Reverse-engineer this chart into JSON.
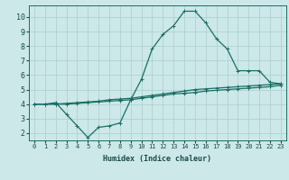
{
  "xlabel": "Humidex (Indice chaleur)",
  "xlim": [
    -0.5,
    23.5
  ],
  "ylim": [
    1.5,
    10.8
  ],
  "xticks": [
    0,
    1,
    2,
    3,
    4,
    5,
    6,
    7,
    8,
    9,
    10,
    11,
    12,
    13,
    14,
    15,
    16,
    17,
    18,
    19,
    20,
    21,
    22,
    23
  ],
  "yticks": [
    2,
    3,
    4,
    5,
    6,
    7,
    8,
    9,
    10
  ],
  "bg_color": "#cce8e8",
  "grid_color": "#aacece",
  "line_color": "#1a6e64",
  "line1_x": [
    0,
    1,
    2,
    3,
    4,
    5,
    6,
    7,
    8,
    9,
    10,
    11,
    12,
    13,
    14,
    15,
    16,
    17,
    18,
    19,
    20,
    21,
    22,
    23
  ],
  "line1_y": [
    4.0,
    4.0,
    4.0,
    4.05,
    4.1,
    4.15,
    4.2,
    4.3,
    4.35,
    4.4,
    4.5,
    4.6,
    4.7,
    4.8,
    4.9,
    5.0,
    5.05,
    5.1,
    5.15,
    5.2,
    5.25,
    5.3,
    5.35,
    5.4
  ],
  "line2_x": [
    0,
    1,
    2,
    3,
    4,
    5,
    6,
    7,
    8,
    9,
    10,
    11,
    12,
    13,
    14,
    15,
    16,
    17,
    18,
    19,
    20,
    21,
    22,
    23
  ],
  "line2_y": [
    4.0,
    4.0,
    4.0,
    4.0,
    4.05,
    4.1,
    4.15,
    4.2,
    4.25,
    4.3,
    4.4,
    4.5,
    4.6,
    4.7,
    4.75,
    4.8,
    4.9,
    4.95,
    5.0,
    5.05,
    5.1,
    5.15,
    5.2,
    5.3
  ],
  "line3_x": [
    0,
    1,
    2,
    3,
    4,
    5,
    6,
    7,
    8,
    9,
    10,
    11,
    12,
    13,
    14,
    15,
    16,
    17,
    18,
    19,
    20,
    21,
    22,
    23
  ],
  "line3_y": [
    4.0,
    4.0,
    4.1,
    3.3,
    2.5,
    1.7,
    2.4,
    2.5,
    2.7,
    4.3,
    5.7,
    7.8,
    8.8,
    9.4,
    10.4,
    10.4,
    9.6,
    8.5,
    7.8,
    6.3,
    6.3,
    6.3,
    5.5,
    5.4
  ],
  "tick_fontsize": 5,
  "xlabel_fontsize": 6,
  "marker_size": 2.5,
  "line_width": 0.9
}
